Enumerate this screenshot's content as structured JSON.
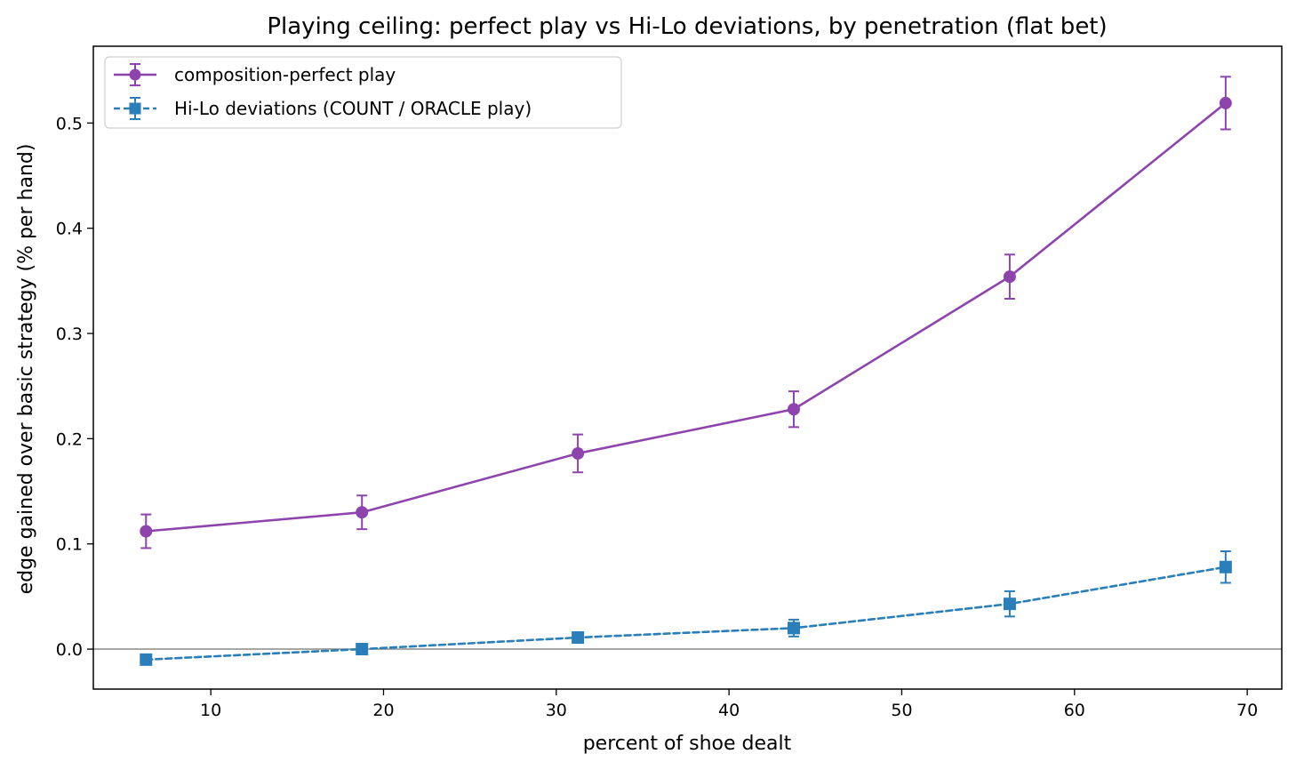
{
  "chart_data": {
    "type": "line",
    "title": "Playing ceiling: perfect play vs Hi-Lo deviations, by penetration (flat bet)",
    "xlabel": "percent of shoe dealt",
    "ylabel": "edge gained over basic strategy (% per hand)",
    "xlim": [
      3.2,
      72.0
    ],
    "ylim": [
      -0.038,
      0.573
    ],
    "xticks": [
      10,
      20,
      30,
      40,
      50,
      60,
      70
    ],
    "yticks": [
      0.0,
      0.1,
      0.2,
      0.3,
      0.4,
      0.5
    ],
    "xtick_labels": [
      "10",
      "20",
      "30",
      "40",
      "50",
      "60",
      "70"
    ],
    "ytick_labels": [
      "0.0",
      "0.1",
      "0.2",
      "0.3",
      "0.4",
      "0.5"
    ],
    "legend_position": "upper-left",
    "zero_line": true,
    "series": [
      {
        "name": "composition-perfect play",
        "color": "#8e44ad",
        "marker": "circle",
        "linestyle": "solid",
        "x": [
          6.25,
          18.75,
          31.25,
          43.75,
          56.25,
          68.75
        ],
        "y": [
          0.112,
          0.13,
          0.186,
          0.228,
          0.354,
          0.519
        ],
        "yerr": [
          0.016,
          0.016,
          0.018,
          0.017,
          0.021,
          0.025
        ]
      },
      {
        "name": "Hi-Lo deviations (COUNT / ORACLE play)",
        "color": "#2a7fba",
        "marker": "square",
        "linestyle": "dashed",
        "x": [
          6.25,
          18.75,
          31.25,
          43.75,
          56.25,
          68.75
        ],
        "y": [
          -0.01,
          0.0,
          0.011,
          0.02,
          0.043,
          0.078
        ],
        "yerr": [
          0.003,
          0.003,
          0.004,
          0.008,
          0.012,
          0.015
        ]
      }
    ]
  }
}
